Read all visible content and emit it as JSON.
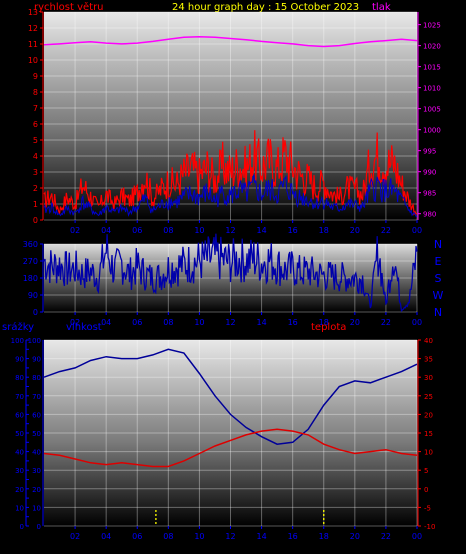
{
  "header": {
    "left_label": "rychlost větru",
    "title": "24 hour graph day : 15 October 2023",
    "right_label": "tlak"
  },
  "colors": {
    "wind": "#ff0000",
    "wind_avg": "#0000cc",
    "pressure": "#ff00ff",
    "direction": "#0000aa",
    "humidity": "#000099",
    "temperature": "#dd0000",
    "rain": "#ffff00",
    "axis_blue": "#0000ff",
    "axis_red": "#ff0000",
    "axis_magenta": "#ff00ff"
  },
  "chart_data": [
    {
      "type": "line",
      "panel": "wind-pressure",
      "left_axis_label": "rychlost větru",
      "right_axis_label": "tlak",
      "x_ticks": [
        "02",
        "04",
        "06",
        "08",
        "10",
        "12",
        "14",
        "16",
        "18",
        "20",
        "22",
        "00"
      ],
      "y_left": {
        "ticks": [
          0,
          1,
          2,
          3,
          4,
          5,
          6,
          7,
          8,
          9,
          10,
          11,
          12,
          13
        ],
        "range": [
          0,
          13
        ]
      },
      "y_right": {
        "ticks": [
          980,
          985,
          990,
          995,
          1000,
          1005,
          1010,
          1015,
          1020,
          1025
        ],
        "range": [
          978.5,
          1028
        ]
      },
      "series": [
        {
          "role": "wind_gust",
          "x": [
            0,
            0.5,
            1,
            1.5,
            2,
            2.5,
            3,
            3.5,
            4,
            4.5,
            5,
            5.5,
            6,
            6.5,
            7,
            7.5,
            8,
            8.5,
            9,
            9.5,
            10,
            10.5,
            11,
            11.5,
            12,
            12.5,
            13,
            13.5,
            14,
            14.5,
            15,
            15.5,
            16,
            16.5,
            17,
            17.5,
            18,
            18.5,
            19,
            19.5,
            20,
            20.5,
            21,
            21.5,
            22,
            22.5,
            23,
            23.5,
            24
          ],
          "values": [
            1.2,
            1.5,
            0.6,
            1.4,
            1.0,
            2.2,
            1.5,
            0.8,
            1.6,
            1.0,
            1.5,
            1.2,
            1.7,
            2.8,
            1.3,
            1.9,
            2.4,
            2.2,
            2.9,
            3.2,
            2.8,
            3.3,
            2.5,
            3.4,
            3.0,
            3.5,
            3.2,
            4.0,
            3.3,
            3.8,
            3.2,
            4.1,
            3.4,
            2.8,
            2.6,
            2.0,
            2.4,
            1.7,
            1.4,
            2.0,
            1.9,
            1.6,
            3.6,
            4.1,
            3.5,
            3.6,
            2.3,
            1.2,
            0.4
          ]
        },
        {
          "role": "wind_avg",
          "x": [
            0,
            0.5,
            1,
            1.5,
            2,
            2.5,
            3,
            3.5,
            4,
            4.5,
            5,
            5.5,
            6,
            6.5,
            7,
            7.5,
            8,
            8.5,
            9,
            9.5,
            10,
            10.5,
            11,
            11.5,
            12,
            12.5,
            13,
            13.5,
            14,
            14.5,
            15,
            15.5,
            16,
            16.5,
            17,
            17.5,
            18,
            18.5,
            19,
            19.5,
            20,
            20.5,
            21,
            21.5,
            22,
            22.5,
            23,
            23.5,
            24
          ],
          "values": [
            0.6,
            0.8,
            0.3,
            0.7,
            0.4,
            1.1,
            0.7,
            0.3,
            0.8,
            0.5,
            0.7,
            0.5,
            0.8,
            1.3,
            0.6,
            0.9,
            1.2,
            1.1,
            1.4,
            1.6,
            1.4,
            1.7,
            1.2,
            1.7,
            1.5,
            1.8,
            1.6,
            2.0,
            1.6,
            1.9,
            1.6,
            2.1,
            1.7,
            1.4,
            1.3,
            1.0,
            1.2,
            0.8,
            0.7,
            1.0,
            0.9,
            0.8,
            1.8,
            2.1,
            1.8,
            1.8,
            1.2,
            0.6,
            0.2
          ]
        },
        {
          "role": "pressure",
          "axis": "right",
          "x": [
            0,
            1,
            2,
            3,
            4,
            5,
            6,
            7,
            8,
            9,
            10,
            11,
            12,
            13,
            14,
            15,
            16,
            17,
            18,
            19,
            20,
            21,
            22,
            23,
            24
          ],
          "values": [
            1020.2,
            1020.4,
            1020.7,
            1020.9,
            1020.6,
            1020.4,
            1020.6,
            1021.0,
            1021.5,
            1022.0,
            1022.1,
            1022.0,
            1021.7,
            1021.4,
            1021.0,
            1020.7,
            1020.4,
            1020.0,
            1019.8,
            1020.0,
            1020.5,
            1020.9,
            1021.2,
            1021.5,
            1021.2
          ]
        }
      ]
    },
    {
      "type": "line",
      "panel": "wind-direction",
      "x_ticks": [
        "02",
        "04",
        "06",
        "08",
        "10",
        "12",
        "14",
        "16",
        "18",
        "20",
        "22",
        "00"
      ],
      "y_left": {
        "ticks": [
          0,
          90,
          180,
          270,
          360
        ],
        "range": [
          0,
          360
        ]
      },
      "y_right_labels": [
        "N",
        "W",
        "S",
        "E",
        "N"
      ],
      "series": [
        {
          "role": "direction",
          "x": [
            0,
            0.5,
            1,
            1.5,
            2,
            2.5,
            3,
            3.5,
            4,
            4.5,
            5,
            5.5,
            6,
            6.5,
            7,
            7.5,
            8,
            8.5,
            9,
            9.5,
            10,
            10.5,
            11,
            11.5,
            12,
            12.5,
            13,
            13.5,
            14,
            14.5,
            15,
            15.5,
            16,
            16.5,
            17,
            17.5,
            18,
            18.5,
            19,
            19.5,
            20,
            20.5,
            21,
            21.5,
            22,
            22.5,
            23,
            23.5,
            24
          ],
          "values": [
            270,
            240,
            250,
            220,
            230,
            200,
            215,
            180,
            330,
            220,
            260,
            200,
            240,
            200,
            180,
            190,
            230,
            240,
            250,
            260,
            270,
            280,
            290,
            275,
            265,
            280,
            270,
            285,
            260,
            275,
            250,
            220,
            230,
            210,
            215,
            200,
            195,
            190,
            185,
            182,
            180,
            175,
            30,
            330,
            40,
            320,
            10,
            60,
            320
          ]
        }
      ]
    },
    {
      "type": "line",
      "panel": "humidity-temperature-rain",
      "labels": {
        "rain": "srážky",
        "humidity": "vlhkost",
        "temperature": "teplota"
      },
      "x_ticks": [
        "02",
        "04",
        "06",
        "08",
        "10",
        "12",
        "14",
        "16",
        "18",
        "20",
        "22",
        "00"
      ],
      "y_rain": {
        "ticks": [
          0,
          5,
          10,
          15,
          20,
          25,
          30,
          35,
          40,
          45,
          50,
          55,
          60,
          65,
          70,
          75,
          80,
          85,
          90,
          95,
          100
        ],
        "range": [
          0,
          100
        ]
      },
      "y_humidity": {
        "ticks": [
          0,
          10,
          20,
          30,
          40,
          50,
          60,
          70,
          80,
          90,
          100
        ],
        "range": [
          0,
          100
        ]
      },
      "y_temperature": {
        "ticks": [
          -10,
          -5,
          0,
          5,
          10,
          15,
          20,
          25,
          30,
          35,
          40
        ],
        "range": [
          -10,
          40
        ]
      },
      "series": [
        {
          "role": "humidity",
          "x": [
            0,
            1,
            2,
            3,
            4,
            5,
            6,
            7,
            8,
            9,
            10,
            11,
            12,
            13,
            14,
            15,
            16,
            17,
            18,
            19,
            20,
            21,
            22,
            23,
            24
          ],
          "values": [
            80,
            83,
            85,
            89,
            91,
            90,
            90,
            92,
            95,
            93,
            82,
            70,
            60,
            53,
            48,
            44,
            45,
            52,
            65,
            75,
            78,
            77,
            80,
            83,
            87
          ]
        },
        {
          "role": "temperature",
          "x": [
            0,
            1,
            2,
            3,
            4,
            5,
            6,
            7,
            8,
            9,
            10,
            11,
            12,
            13,
            14,
            15,
            16,
            17,
            18,
            19,
            20,
            21,
            22,
            23,
            24
          ],
          "values": [
            9.5,
            9,
            8,
            7,
            6.5,
            7,
            6.5,
            6,
            6,
            7.5,
            9.5,
            11.5,
            13,
            14.5,
            15.5,
            16,
            15.5,
            14.5,
            12,
            10.5,
            9.5,
            10,
            10.5,
            9.5,
            9
          ]
        },
        {
          "role": "rain_markers",
          "x": [
            7.2,
            18
          ],
          "values": [
            1,
            1
          ]
        }
      ]
    }
  ]
}
